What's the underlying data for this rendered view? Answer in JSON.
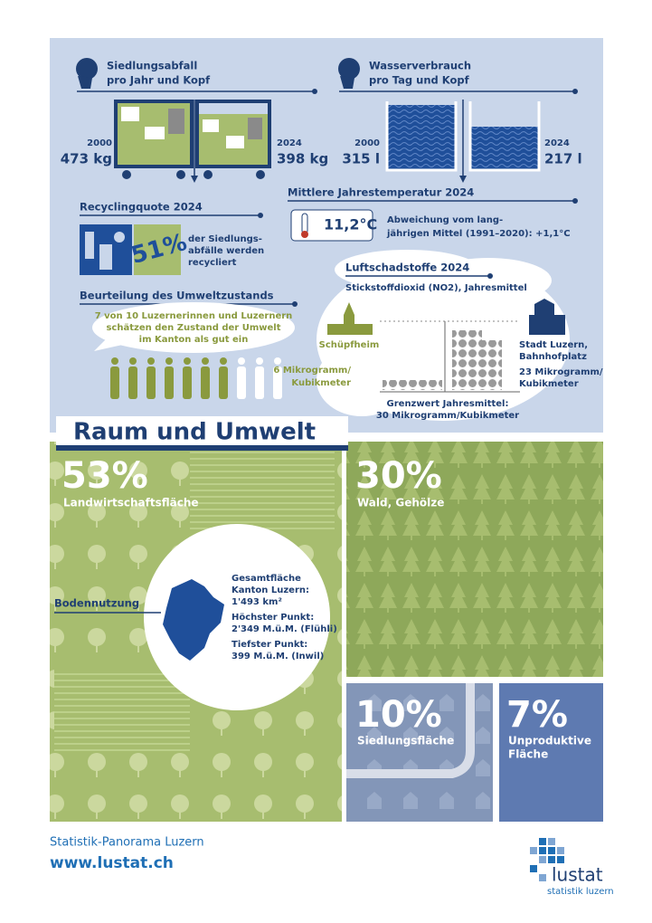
{
  "waste": {
    "title": [
      "Siedlungsabfall",
      "pro Jahr und Kopf"
    ],
    "year_start": "2000",
    "value_start": "473 kg",
    "year_end": "2024",
    "value_end": "398 kg"
  },
  "water": {
    "title": [
      "Wasserverbrauch",
      "pro Tag und Kopf"
    ],
    "year_start": "2000",
    "value_start": "315 l",
    "year_end": "2024",
    "value_end": "217 l"
  },
  "temperature": {
    "title": "Mittlere Jahrestemperatur 2024",
    "value": "11,2°C",
    "deviation": [
      "Abweichung vom lang-",
      "jährigen Mittel (1991–2020): +1,1°C"
    ]
  },
  "recycling": {
    "title": "Recyclingquote 2024",
    "value": "51%",
    "text": [
      "der Siedlungs-",
      "abfälle werden",
      "recycliert"
    ]
  },
  "environment": {
    "title": "Beurteilung des Umweltzustands",
    "text": [
      "7 von 10 Luzernerinnen und Luzernern",
      "schätzen den Zustand der Umwelt",
      "im Kanton als gut ein"
    ]
  },
  "air": {
    "title": "Luftschadstoffe 2024",
    "subtitle": "Stickstoffdioxid (NO2), Jahresmittel",
    "left": {
      "place": "Schüpfheim",
      "value": [
        "6 Mikrogramm/",
        "Kubikmeter"
      ]
    },
    "right": {
      "place": [
        "Stadt Luzern,",
        "Bahnhofplatz"
      ],
      "value": [
        "23 Mikrogramm/",
        "Kubikmeter"
      ]
    },
    "limit": [
      "Grenzwert Jahresmittel:",
      "30 Mikrogramm/Kubikmeter"
    ]
  },
  "section_title": "Raum und Umwelt",
  "land": {
    "label": "Bodennutzung",
    "items": [
      {
        "value": "53%",
        "label": [
          "Landwirtschaftsfläche"
        ]
      },
      {
        "value": "30%",
        "label": [
          "Wald, Gehölze"
        ]
      },
      {
        "value": "10%",
        "label": [
          "Siedlungsfläche"
        ]
      },
      {
        "value": "7%",
        "label": [
          "Unproduktive",
          "Fläche"
        ]
      }
    ],
    "facts": [
      "Gesamtfläche",
      "Kanton Luzern:",
      "1'493 km²",
      "Höchster Punkt:",
      "2'349 M.ü.M. (Flühli)",
      "Tiefster Punkt:",
      "399 M.ü.M. (Inwil)"
    ]
  },
  "footer": {
    "series": "Statistik-Panorama Luzern",
    "url": "www.lustat.ch"
  },
  "logo": {
    "name": "lustat",
    "tagline": "statistik luzern"
  }
}
